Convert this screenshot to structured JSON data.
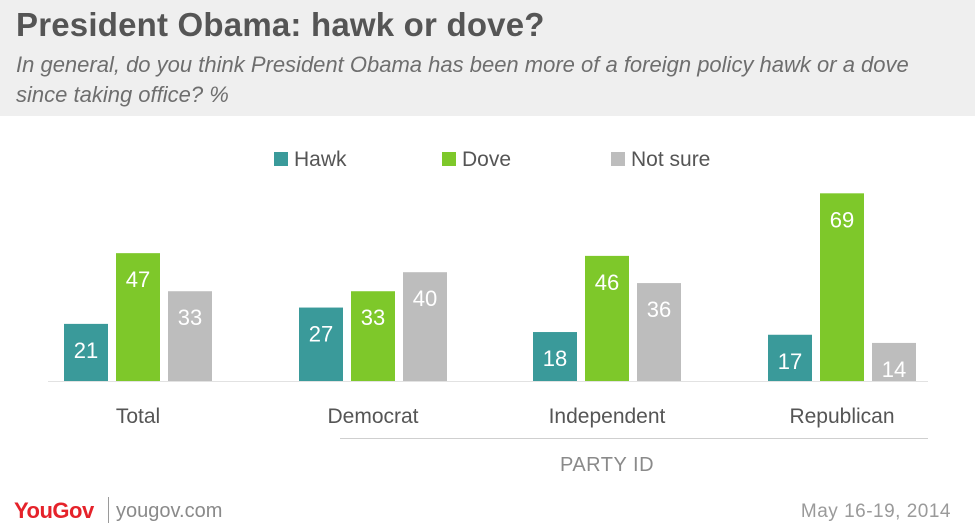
{
  "header": {
    "title": "President Obama: hawk or dove?",
    "subtitle": "In general, do you think President Obama has been more of a foreign policy hawk or a dove since taking office? %"
  },
  "footer": {
    "brand": "YouGov",
    "site": "yougov.com",
    "date": "May 16-19, 2014"
  },
  "colors": {
    "hawk": "#3a9a9a",
    "dove": "#7ec82a",
    "not_sure": "#bdbdbd",
    "axis_text": "#555555",
    "group_label": "#8a8a8a"
  },
  "chart_data": {
    "type": "bar",
    "categories": [
      "Total",
      "Democrat",
      "Independent",
      "Republican"
    ],
    "series": [
      {
        "name": "Hawk",
        "values": [
          21,
          27,
          18,
          17
        ]
      },
      {
        "name": "Dove",
        "values": [
          47,
          33,
          46,
          69
        ]
      },
      {
        "name": "Not sure",
        "values": [
          33,
          40,
          36,
          14
        ]
      }
    ],
    "group_label": "PARTY ID",
    "grouped_categories": [
      "Democrat",
      "Independent",
      "Republican"
    ],
    "ylim": [
      0,
      70
    ],
    "legend_position": "top-center",
    "grid": false,
    "data_labels": "inside-top"
  }
}
